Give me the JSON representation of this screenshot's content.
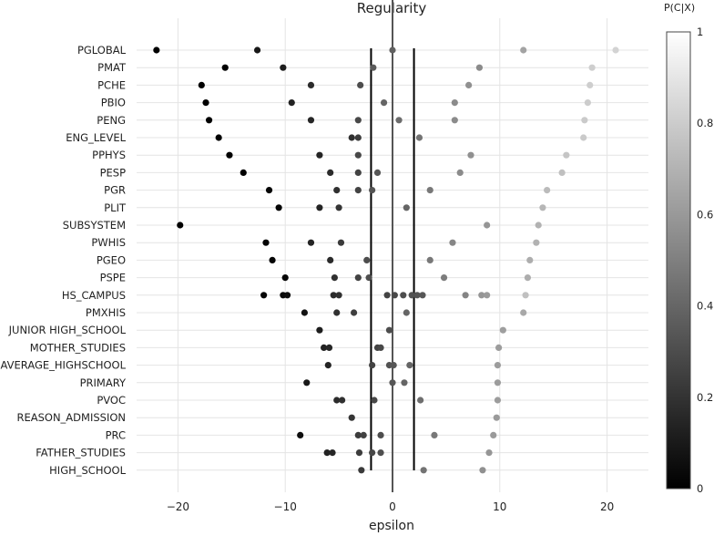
{
  "chart_data": {
    "type": "scatter",
    "title": "Regularity",
    "xlabel": "epsilon",
    "xlim": [
      -24,
      24
    ],
    "xticks": [
      -20,
      -10,
      0,
      10,
      20
    ],
    "vlines": [
      -2,
      0,
      2
    ],
    "grid": true,
    "colorbar": {
      "title": "P(C|X)",
      "range": [
        0,
        1
      ],
      "ticks": [
        0,
        0.2,
        0.4,
        0.6,
        0.8,
        1
      ],
      "tick_labels": [
        "0",
        "0.2",
        "0.4",
        "0.6",
        "0.8",
        "1"
      ],
      "colorscale": "black-to-white"
    },
    "categories": [
      "PGLOBAL",
      "PMAT",
      "PCHE",
      "PBIO",
      "PENG",
      "ENG_LEVEL",
      "PPHYS",
      "PESP",
      "PGR",
      "PLIT",
      "SUBSYSTEM",
      "PWHIS",
      "PGEO",
      "PSPE",
      "HS_CAMPUS",
      "PMXHIS",
      "JUNIOR HIGH_SCHOOL",
      "MOTHER_STUDIES",
      "AVERAGE_HIGHSCHOOL",
      "PRIMARY",
      "PVOC",
      "REASON_ADMISSION",
      "PRC",
      "FATHER_STUDIES",
      "HIGH_SCHOOL"
    ],
    "points": [
      {
        "c": "PGLOBAL",
        "x": -22,
        "p": 0.0
      },
      {
        "c": "PGLOBAL",
        "x": -12.6,
        "p": 0.1
      },
      {
        "c": "PGLOBAL",
        "x": 0,
        "p": 0.4
      },
      {
        "c": "PGLOBAL",
        "x": 12.2,
        "p": 0.68
      },
      {
        "c": "PGLOBAL",
        "x": 20.8,
        "p": 0.88
      },
      {
        "c": "PMAT",
        "x": -15.6,
        "p": 0.0
      },
      {
        "c": "PMAT",
        "x": -10.2,
        "p": 0.12
      },
      {
        "c": "PMAT",
        "x": -1.8,
        "p": 0.38
      },
      {
        "c": "PMAT",
        "x": 8.1,
        "p": 0.58
      },
      {
        "c": "PMAT",
        "x": 18.6,
        "p": 0.86
      },
      {
        "c": "PCHE",
        "x": -17.8,
        "p": 0.0
      },
      {
        "c": "PCHE",
        "x": -7.6,
        "p": 0.18
      },
      {
        "c": "PCHE",
        "x": -3,
        "p": 0.32
      },
      {
        "c": "PCHE",
        "x": 7.1,
        "p": 0.6
      },
      {
        "c": "PCHE",
        "x": 18.4,
        "p": 0.86
      },
      {
        "c": "PBIO",
        "x": -17.4,
        "p": 0.0
      },
      {
        "c": "PBIO",
        "x": -9.4,
        "p": 0.14
      },
      {
        "c": "PBIO",
        "x": -0.8,
        "p": 0.42
      },
      {
        "c": "PBIO",
        "x": 5.8,
        "p": 0.58
      },
      {
        "c": "PBIO",
        "x": 18.2,
        "p": 0.85
      },
      {
        "c": "PENG",
        "x": -17.1,
        "p": 0.0
      },
      {
        "c": "PENG",
        "x": -7.6,
        "p": 0.16
      },
      {
        "c": "PENG",
        "x": -3.2,
        "p": 0.3
      },
      {
        "c": "PENG",
        "x": 0.6,
        "p": 0.45
      },
      {
        "c": "PENG",
        "x": 5.8,
        "p": 0.58
      },
      {
        "c": "PENG",
        "x": 17.9,
        "p": 0.84
      },
      {
        "c": "ENG_LEVEL",
        "x": -16.2,
        "p": 0.0
      },
      {
        "c": "ENG_LEVEL",
        "x": -3.8,
        "p": 0.2
      },
      {
        "c": "ENG_LEVEL",
        "x": -3.2,
        "p": 0.25
      },
      {
        "c": "ENG_LEVEL",
        "x": 2.5,
        "p": 0.48
      },
      {
        "c": "ENG_LEVEL",
        "x": 17.8,
        "p": 0.84
      },
      {
        "c": "PPHYS",
        "x": -15.2,
        "p": 0.0
      },
      {
        "c": "PPHYS",
        "x": -6.8,
        "p": 0.15
      },
      {
        "c": "PPHYS",
        "x": -3.2,
        "p": 0.3
      },
      {
        "c": "PPHYS",
        "x": 7.3,
        "p": 0.6
      },
      {
        "c": "PPHYS",
        "x": 16.2,
        "p": 0.82
      },
      {
        "c": "PESP",
        "x": -13.9,
        "p": 0.0
      },
      {
        "c": "PESP",
        "x": -5.8,
        "p": 0.18
      },
      {
        "c": "PESP",
        "x": -3.2,
        "p": 0.28
      },
      {
        "c": "PESP",
        "x": -1.4,
        "p": 0.36
      },
      {
        "c": "PESP",
        "x": 6.3,
        "p": 0.58
      },
      {
        "c": "PESP",
        "x": 15.8,
        "p": 0.8
      },
      {
        "c": "PGR",
        "x": -11.5,
        "p": 0.02
      },
      {
        "c": "PGR",
        "x": -5.2,
        "p": 0.2
      },
      {
        "c": "PGR",
        "x": -3.2,
        "p": 0.28
      },
      {
        "c": "PGR",
        "x": -1.9,
        "p": 0.35
      },
      {
        "c": "PGR",
        "x": 3.5,
        "p": 0.5
      },
      {
        "c": "PGR",
        "x": 14.4,
        "p": 0.78
      },
      {
        "c": "PLIT",
        "x": -10.6,
        "p": 0.02
      },
      {
        "c": "PLIT",
        "x": -6.8,
        "p": 0.15
      },
      {
        "c": "PLIT",
        "x": -5,
        "p": 0.22
      },
      {
        "c": "PLIT",
        "x": 1.3,
        "p": 0.42
      },
      {
        "c": "PLIT",
        "x": 14,
        "p": 0.76
      },
      {
        "c": "SUBSYSTEM",
        "x": -19.8,
        "p": 0.0
      },
      {
        "c": "SUBSYSTEM",
        "x": 8.8,
        "p": 0.62
      },
      {
        "c": "SUBSYSTEM",
        "x": 13.6,
        "p": 0.74
      },
      {
        "c": "PWHIS",
        "x": -11.8,
        "p": 0.02
      },
      {
        "c": "PWHIS",
        "x": -7.6,
        "p": 0.15
      },
      {
        "c": "PWHIS",
        "x": -4.8,
        "p": 0.24
      },
      {
        "c": "PWHIS",
        "x": 5.6,
        "p": 0.56
      },
      {
        "c": "PWHIS",
        "x": 13.4,
        "p": 0.74
      },
      {
        "c": "PGEO",
        "x": -11.2,
        "p": 0.02
      },
      {
        "c": "PGEO",
        "x": -5.8,
        "p": 0.18
      },
      {
        "c": "PGEO",
        "x": -2.4,
        "p": 0.32
      },
      {
        "c": "PGEO",
        "x": 3.5,
        "p": 0.5
      },
      {
        "c": "PGEO",
        "x": 12.8,
        "p": 0.72
      },
      {
        "c": "PSPE",
        "x": -10,
        "p": 0.02
      },
      {
        "c": "PSPE",
        "x": -5.4,
        "p": 0.2
      },
      {
        "c": "PSPE",
        "x": -3.2,
        "p": 0.28
      },
      {
        "c": "PSPE",
        "x": -2.2,
        "p": 0.33
      },
      {
        "c": "PSPE",
        "x": 4.8,
        "p": 0.52
      },
      {
        "c": "PSPE",
        "x": 12.6,
        "p": 0.72
      },
      {
        "c": "HS_CAMPUS",
        "x": -12,
        "p": 0.02
      },
      {
        "c": "HS_CAMPUS",
        "x": -10.2,
        "p": 0.04
      },
      {
        "c": "HS_CAMPUS",
        "x": -9.8,
        "p": 0.06
      },
      {
        "c": "HS_CAMPUS",
        "x": -5.5,
        "p": 0.18
      },
      {
        "c": "HS_CAMPUS",
        "x": -5,
        "p": 0.2
      },
      {
        "c": "HS_CAMPUS",
        "x": -0.5,
        "p": 0.28
      },
      {
        "c": "HS_CAMPUS",
        "x": 0.2,
        "p": 0.3
      },
      {
        "c": "HS_CAMPUS",
        "x": 1,
        "p": 0.32
      },
      {
        "c": "HS_CAMPUS",
        "x": 1.8,
        "p": 0.34
      },
      {
        "c": "HS_CAMPUS",
        "x": 2.3,
        "p": 0.35
      },
      {
        "c": "HS_CAMPUS",
        "x": 2.8,
        "p": 0.36
      },
      {
        "c": "HS_CAMPUS",
        "x": 6.8,
        "p": 0.55
      },
      {
        "c": "HS_CAMPUS",
        "x": 8.3,
        "p": 0.62
      },
      {
        "c": "HS_CAMPUS",
        "x": 8.8,
        "p": 0.64
      },
      {
        "c": "HS_CAMPUS",
        "x": 12.4,
        "p": 0.8
      },
      {
        "c": "PMXHIS",
        "x": -8.2,
        "p": 0.08
      },
      {
        "c": "PMXHIS",
        "x": -5.2,
        "p": 0.2
      },
      {
        "c": "PMXHIS",
        "x": -3.6,
        "p": 0.26
      },
      {
        "c": "PMXHIS",
        "x": 1.3,
        "p": 0.42
      },
      {
        "c": "PMXHIS",
        "x": 12.2,
        "p": 0.7
      },
      {
        "c": "JUNIOR HIGH_SCHOOL",
        "x": -6.8,
        "p": 0.12
      },
      {
        "c": "JUNIOR HIGH_SCHOOL",
        "x": -0.3,
        "p": 0.32
      },
      {
        "c": "JUNIOR HIGH_SCHOOL",
        "x": 10.3,
        "p": 0.66
      },
      {
        "c": "MOTHER_STUDIES",
        "x": -6.4,
        "p": 0.14
      },
      {
        "c": "MOTHER_STUDIES",
        "x": -5.9,
        "p": 0.16
      },
      {
        "c": "MOTHER_STUDIES",
        "x": -1.4,
        "p": 0.28
      },
      {
        "c": "MOTHER_STUDIES",
        "x": -1.1,
        "p": 0.3
      },
      {
        "c": "MOTHER_STUDIES",
        "x": 9.9,
        "p": 0.65
      },
      {
        "c": "AVERAGE_HIGHSCHOOL",
        "x": -6,
        "p": 0.15
      },
      {
        "c": "AVERAGE_HIGHSCHOOL",
        "x": -1.9,
        "p": 0.28
      },
      {
        "c": "AVERAGE_HIGHSCHOOL",
        "x": -0.3,
        "p": 0.34
      },
      {
        "c": "AVERAGE_HIGHSCHOOL",
        "x": 0.1,
        "p": 0.36
      },
      {
        "c": "AVERAGE_HIGHSCHOOL",
        "x": 1.6,
        "p": 0.42
      },
      {
        "c": "AVERAGE_HIGHSCHOOL",
        "x": 9.8,
        "p": 0.65
      },
      {
        "c": "PRIMARY",
        "x": -8,
        "p": 0.1
      },
      {
        "c": "PRIMARY",
        "x": 0,
        "p": 0.36
      },
      {
        "c": "PRIMARY",
        "x": 1.1,
        "p": 0.42
      },
      {
        "c": "PRIMARY",
        "x": 9.8,
        "p": 0.65
      },
      {
        "c": "PVOC",
        "x": -5.2,
        "p": 0.18
      },
      {
        "c": "PVOC",
        "x": -4.7,
        "p": 0.2
      },
      {
        "c": "PVOC",
        "x": -1.7,
        "p": 0.3
      },
      {
        "c": "PVOC",
        "x": 2.6,
        "p": 0.46
      },
      {
        "c": "PVOC",
        "x": 9.8,
        "p": 0.65
      },
      {
        "c": "REASON_ADMISSION",
        "x": -3.8,
        "p": 0.22
      },
      {
        "c": "REASON_ADMISSION",
        "x": 9.7,
        "p": 0.64
      },
      {
        "c": "PRC",
        "x": -8.6,
        "p": 0.06
      },
      {
        "c": "PRC",
        "x": -3.2,
        "p": 0.25
      },
      {
        "c": "PRC",
        "x": -2.7,
        "p": 0.27
      },
      {
        "c": "PRC",
        "x": -1.1,
        "p": 0.32
      },
      {
        "c": "PRC",
        "x": 3.9,
        "p": 0.5
      },
      {
        "c": "PRC",
        "x": 9.4,
        "p": 0.64
      },
      {
        "c": "FATHER_STUDIES",
        "x": -6.1,
        "p": 0.14
      },
      {
        "c": "FATHER_STUDIES",
        "x": -5.6,
        "p": 0.16
      },
      {
        "c": "FATHER_STUDIES",
        "x": -3.1,
        "p": 0.25
      },
      {
        "c": "FATHER_STUDIES",
        "x": -1.9,
        "p": 0.3
      },
      {
        "c": "FATHER_STUDIES",
        "x": -1.1,
        "p": 0.33
      },
      {
        "c": "FATHER_STUDIES",
        "x": 9,
        "p": 0.62
      },
      {
        "c": "HIGH_SCHOOL",
        "x": -2.9,
        "p": 0.24
      },
      {
        "c": "HIGH_SCHOOL",
        "x": 2.9,
        "p": 0.48
      },
      {
        "c": "HIGH_SCHOOL",
        "x": 8.4,
        "p": 0.6
      }
    ]
  }
}
